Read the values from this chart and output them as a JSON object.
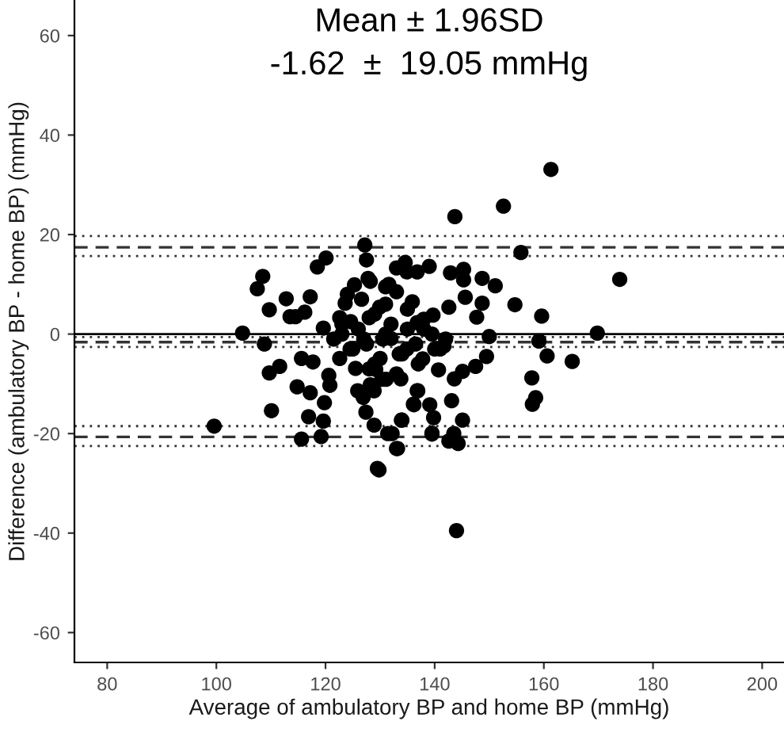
{
  "chart_data": {
    "type": "scatter",
    "xlabel": "Average of ambulatory BP and home BP (mmHg)",
    "ylabel": "Difference (ambulatory BP - home BP) (mmHg)",
    "annotations": [
      "Mean ± 1.96SD",
      "-1.62  ±  19.05 mmHg"
    ],
    "xlim": [
      74,
      204
    ],
    "xticks": [
      80,
      100,
      120,
      140,
      160,
      180,
      200
    ],
    "ylim": [
      -66,
      67
    ],
    "yticks": [
      -60,
      -40,
      -20,
      0,
      20,
      40,
      60
    ],
    "grid": false,
    "marker": "circle",
    "ref_lines": [
      {
        "axis": "y",
        "value": 0,
        "color": "#000000",
        "line_style": "solid"
      },
      {
        "axis": "y",
        "value": -1.62,
        "color": "#333333",
        "line_style": "dashed"
      },
      {
        "axis": "y",
        "value": 17.43,
        "color": "#333333",
        "line_style": "dashed"
      },
      {
        "axis": "y",
        "value": -20.67,
        "color": "#333333",
        "line_style": "dashed"
      },
      {
        "axis": "y",
        "value": 19.7,
        "color": "#333333",
        "line_style": "dotted"
      },
      {
        "axis": "y",
        "value": 15.7,
        "color": "#333333",
        "line_style": "dotted"
      },
      {
        "axis": "y",
        "value": -0.6,
        "color": "#333333",
        "line_style": "dotted"
      },
      {
        "axis": "y",
        "value": -2.6,
        "color": "#333333",
        "line_style": "dotted"
      },
      {
        "axis": "y",
        "value": -18.5,
        "color": "#333333",
        "line_style": "dotted"
      },
      {
        "axis": "y",
        "value": -22.5,
        "color": "#333333",
        "line_style": "dotted"
      }
    ],
    "series": [
      {
        "color": "#000000",
        "x": [
          99.6,
          104.8,
          108.8,
          109.7,
          110.1,
          111.6,
          107.5,
          108.5,
          109.7,
          112.8,
          113.5,
          114.5,
          116.2,
          117.2,
          118.5,
          120.1,
          114.8,
          115.6,
          117.2,
          116.9,
          115.6,
          119.2,
          119.8,
          119.6,
          117.7,
          119.6,
          120.6,
          120.8,
          122.6,
          123.6,
          124.6,
          125.3,
          122.6,
          125.5,
          125.9,
          126.9,
          127.4,
          128.9,
          129.8,
          133,
          132.2,
          127.2,
          127.5,
          127.8,
          126.6,
          128,
          129.9,
          131,
          133,
          134.6,
          131,
          130,
          130.3,
          128.9,
          133.8,
          136.1,
          134,
          136.9,
          161.3,
          152.6,
          143.7,
          155.8,
          173.9,
          154.7,
          159.6,
          169.8,
          159.1,
          160.6,
          165.2,
          157.8,
          157.9,
          158.5,
          151.1,
          148.7,
          145.3,
          145.3,
          139,
          136.8,
          134.9,
          142.9,
          145.6,
          148.7,
          147.7,
          150,
          149.5,
          147.5,
          145.1,
          143.6,
          143.1,
          145.1,
          143.5,
          139.5,
          139.8,
          139.1,
          136.2,
          133.2,
          129.5,
          131.4,
          133.9,
          136.8,
          140.7,
          137.8,
          134.9,
          132,
          136.8,
          139.7,
          142.6,
          135.9,
          133,
          128.2,
          131.6,
          141.7,
          129.2,
          128.2,
          131.1,
          144,
          144.3,
          142.6,
          139.5,
          121.5,
          123,
          124.5,
          126,
          127.5,
          129,
          130.5,
          132,
          133.5,
          135,
          136.5,
          138,
          139.5,
          141,
          137,
          135,
          133,
          131,
          129,
          127,
          125,
          123,
          124,
          128,
          134,
          138,
          142,
          140
        ],
        "values": [
          -18.5,
          0.2,
          -2,
          -7.8,
          -15.4,
          -6.5,
          9.1,
          11.6,
          4.9,
          7.1,
          3.5,
          3.5,
          4.4,
          7.5,
          13.5,
          15.3,
          -10.6,
          -4.9,
          -11.8,
          -16.6,
          -21.1,
          -20.6,
          -13.8,
          -17.5,
          -5.6,
          1.2,
          -8.3,
          -10.3,
          3.3,
          6.2,
          2.5,
          9.9,
          -4.9,
          -6.9,
          -11.4,
          -12.7,
          -15.7,
          -18.3,
          -27.3,
          -23,
          -20,
          17.9,
          14.9,
          11.2,
          7,
          3.3,
          5.4,
          9.5,
          13.3,
          14.4,
          0,
          -4.9,
          -9.1,
          -11.4,
          -9,
          -14.1,
          -17.3,
          -11.4,
          33.1,
          25.7,
          23.6,
          16.4,
          11,
          5.9,
          3.6,
          0.2,
          -1.4,
          -4.4,
          -5.5,
          -8.8,
          -14.1,
          -12.8,
          9.7,
          11.2,
          13,
          10.9,
          13.6,
          12.5,
          12.5,
          12.3,
          7.4,
          6.2,
          3.4,
          -0.5,
          -4.5,
          -6.5,
          -7.5,
          -9,
          -13.4,
          -17.3,
          -20,
          -19.9,
          -16.8,
          -14.2,
          -14.2,
          -23,
          -27,
          -20,
          -17.3,
          -11.4,
          -7.2,
          -5,
          -3,
          -0.9,
          2.3,
          3.8,
          5.4,
          6.5,
          8.5,
          10.6,
          10,
          -2.4,
          -7.1,
          -10.2,
          -9.1,
          -39.5,
          -22,
          -21.5,
          -20.1,
          -1,
          2,
          -3,
          1,
          -2,
          4,
          -1,
          2,
          -4,
          1,
          -2,
          3,
          0,
          -3,
          -6,
          5,
          -8,
          6,
          -6,
          -1,
          -3,
          0,
          8,
          -7,
          -4,
          1,
          -1,
          -3
        ]
      }
    ]
  }
}
